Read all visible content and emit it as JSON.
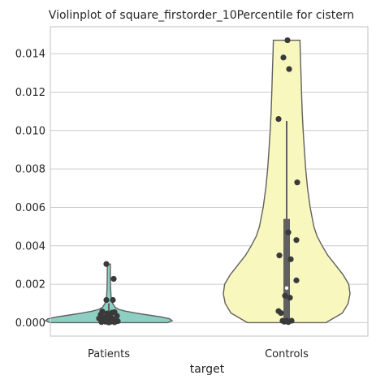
{
  "chart_data": {
    "type": "violin",
    "title": "Violinplot of square_firstorder_10Percentile for cistern",
    "xlabel": "target",
    "ylabel": "",
    "categories": [
      "Patients",
      "Controls"
    ],
    "ylim": [
      -0.0007,
      0.0154
    ],
    "yticks": [
      "0.000",
      "0.002",
      "0.004",
      "0.006",
      "0.008",
      "0.010",
      "0.012",
      "0.014"
    ],
    "grid": true,
    "colors": {
      "Patients": "#8ecfc3",
      "Controls": "#f8f7bd",
      "edge": "#606060",
      "points": "#3a3a3a",
      "grid": "#cccccc"
    },
    "violins": [
      {
        "category": "Patients",
        "min": 0.0,
        "max": 0.00305,
        "density": [
          [
            0.0,
            0.93
          ],
          [
            0.0001,
            1.0
          ],
          [
            0.0002,
            0.96
          ],
          [
            0.0003,
            0.82
          ],
          [
            0.0004,
            0.62
          ],
          [
            0.0005,
            0.42
          ],
          [
            0.0006,
            0.26
          ],
          [
            0.0007,
            0.15
          ],
          [
            0.0008,
            0.1
          ],
          [
            0.001,
            0.06
          ],
          [
            0.0012,
            0.045
          ],
          [
            0.0014,
            0.035
          ],
          [
            0.0018,
            0.028
          ],
          [
            0.0022,
            0.026
          ],
          [
            0.0026,
            0.025
          ],
          [
            0.00305,
            0.025
          ]
        ],
        "quartiles": [
          8e-05,
          0.00025,
          0.0005
        ],
        "whiskers": [
          0.0,
          0.001
        ]
      },
      {
        "category": "Controls",
        "min": 0.0,
        "max": 0.0147,
        "density": [
          [
            0.0,
            0.62
          ],
          [
            0.0005,
            0.88
          ],
          [
            0.001,
            0.97
          ],
          [
            0.0015,
            1.0
          ],
          [
            0.002,
            0.98
          ],
          [
            0.0025,
            0.89
          ],
          [
            0.003,
            0.77
          ],
          [
            0.0035,
            0.65
          ],
          [
            0.004,
            0.56
          ],
          [
            0.0045,
            0.48
          ],
          [
            0.005,
            0.43
          ],
          [
            0.006,
            0.37
          ],
          [
            0.007,
            0.33
          ],
          [
            0.008,
            0.3
          ],
          [
            0.009,
            0.28
          ],
          [
            0.01,
            0.26
          ],
          [
            0.011,
            0.245
          ],
          [
            0.012,
            0.235
          ],
          [
            0.013,
            0.225
          ],
          [
            0.014,
            0.215
          ],
          [
            0.0147,
            0.21
          ]
        ],
        "quartiles": [
          0.0001,
          0.0018,
          0.0054
        ],
        "whiskers": [
          0.0,
          0.0105
        ]
      }
    ],
    "points": {
      "Patients": [
        [
          -0.03,
          0.00305
        ],
        [
          0.06,
          0.00228
        ],
        [
          0.05,
          0.00118
        ],
        [
          -0.03,
          0.00118
        ],
        [
          -0.08,
          0.00058
        ],
        [
          -0.02,
          0.00048
        ],
        [
          0.07,
          0.00055
        ],
        [
          0.04,
          0.00052
        ],
        [
          -0.1,
          0.00042
        ],
        [
          0.0,
          0.0004
        ],
        [
          0.1,
          0.00035
        ],
        [
          -0.06,
          0.00028
        ],
        [
          0.03,
          0.00025
        ],
        [
          -0.12,
          0.00022
        ],
        [
          0.08,
          0.00018
        ],
        [
          -0.01,
          0.00015
        ],
        [
          0.05,
          0.00012
        ],
        [
          -0.07,
          0.0001
        ],
        [
          0.11,
          8e-05
        ],
        [
          -0.04,
          5e-05
        ],
        [
          0.02,
          4e-05
        ],
        [
          -0.09,
          3e-05
        ],
        [
          0.07,
          2e-05
        ],
        [
          0.0,
          1e-05
        ]
      ],
      "Controls": [
        [
          0.01,
          0.0147
        ],
        [
          -0.04,
          0.0138
        ],
        [
          0.03,
          0.0132
        ],
        [
          -0.1,
          0.0106
        ],
        [
          0.13,
          0.0073
        ],
        [
          0.02,
          0.0047
        ],
        [
          0.12,
          0.0043
        ],
        [
          -0.09,
          0.0035
        ],
        [
          0.05,
          0.0033
        ],
        [
          0.12,
          0.0022
        ],
        [
          -0.02,
          0.0014
        ],
        [
          0.04,
          0.0013
        ],
        [
          -0.1,
          0.0006
        ],
        [
          -0.07,
          0.0005
        ],
        [
          -0.05,
          0.0001
        ],
        [
          0.0,
          0.0001
        ],
        [
          0.06,
          0.0001
        ],
        [
          -0.03,
          5e-05
        ],
        [
          0.02,
          3e-05
        ]
      ]
    }
  }
}
